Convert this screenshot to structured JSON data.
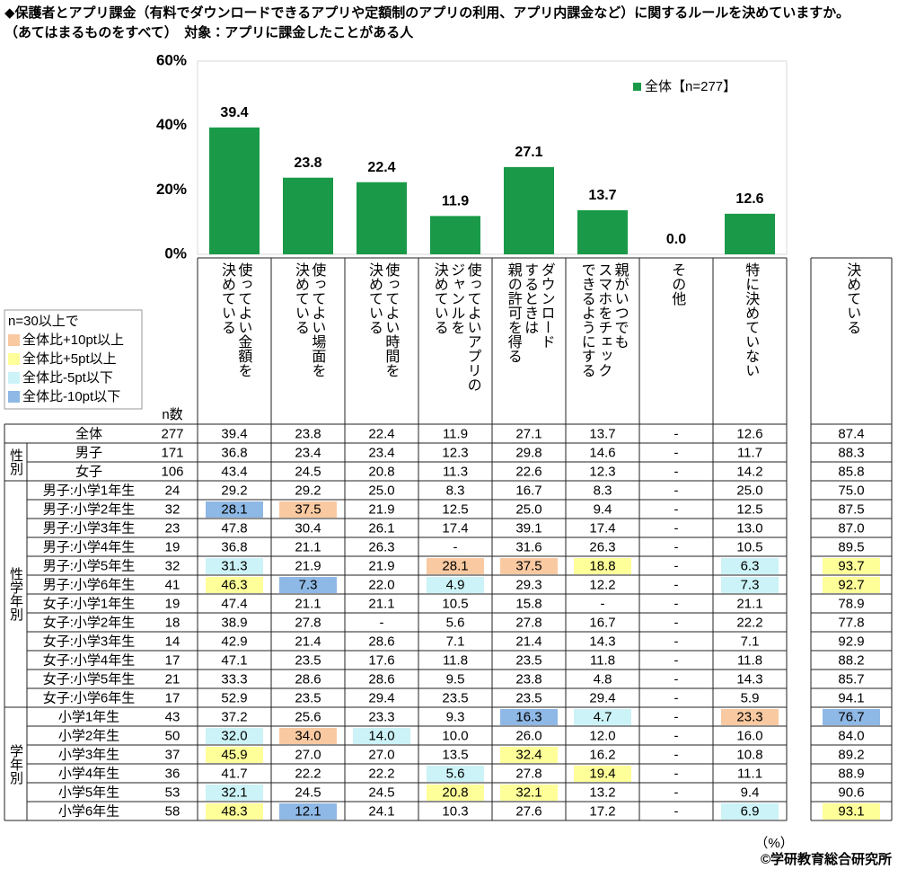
{
  "title": "◆保護者とアプリ課金（有料でダウンロードできるアプリや定額制のアプリの利用、アプリ内課金など）に関するルールを決めていますか。",
  "subtitle": "（あてはまるものをすべて）　対象：アプリに課金したことがある人",
  "chart_data": {
    "type": "bar",
    "categories": [
      "使ってよい金額を\n決めている",
      "使ってよい場面を\n決めている",
      "使ってよい時間を\n決めている",
      "使ってよいアプリの\nジャンルを\n決めている",
      "ダウンロード\nするときは\n親の許可を得る",
      "親がいつでも\nスマホをチェック\nできるようにする",
      "その他",
      "特に決めていない"
    ],
    "series": [
      {
        "name": "全体【n=277】",
        "color": "#1a9a48",
        "values": [
          39.4,
          23.8,
          22.4,
          11.9,
          27.1,
          13.7,
          0.0,
          12.6
        ],
        "value_labels": [
          "39.4",
          "23.8",
          "22.4",
          "11.9",
          "27.1",
          "13.7",
          "0.0",
          "12.6"
        ]
      }
    ],
    "ylim": [
      0,
      60
    ],
    "yticks": [
      {
        "value": 0,
        "label": "0%"
      },
      {
        "value": 20,
        "label": "20%"
      },
      {
        "value": 40,
        "label": "40%"
      },
      {
        "value": 60,
        "label": "60%"
      }
    ],
    "legend": "upper right"
  },
  "legend": {
    "title": "n=30以上で",
    "items": [
      {
        "label": "全体比+10pt以上",
        "color": "#f9c9a1"
      },
      {
        "label": "全体比+5pt以上",
        "color": "#ffff99"
      },
      {
        "label": "全体比-5pt以下",
        "color": "#ccf3f7"
      },
      {
        "label": "全体比-10pt以下",
        "color": "#8eb8e5"
      }
    ]
  },
  "table": {
    "n_header": "n数",
    "total_header": "決めている",
    "sections": [
      {
        "rows": [
          {
            "label": "全体",
            "n": "277",
            "cells": [
              "39.4",
              "23.8",
              "22.4",
              "11.9",
              "27.1",
              "13.7",
              "-",
              "12.6",
              "87.4"
            ]
          }
        ]
      },
      {
        "label": "性別",
        "rows": [
          {
            "label": "男子",
            "n": "171",
            "cells": [
              "36.8",
              "23.4",
              "23.4",
              "12.3",
              "29.8",
              "14.6",
              "-",
              "11.7",
              "88.3"
            ]
          },
          {
            "label": "女子",
            "n": "106",
            "cells": [
              "43.4",
              "24.5",
              "20.8",
              "11.3",
              "22.6",
              "12.3",
              "-",
              "14.2",
              "85.8"
            ]
          }
        ]
      },
      {
        "label": "性学年別",
        "rows": [
          {
            "label": "男子:小学1年生",
            "n": "24",
            "cells": [
              "29.2",
              "29.2",
              "25.0",
              "8.3",
              "16.7",
              "8.3",
              "-",
              "25.0",
              "75.0"
            ]
          },
          {
            "label": "男子:小学2年生",
            "n": "32",
            "cells": [
              "28.1",
              "37.5",
              "21.9",
              "12.5",
              "25.0",
              "9.4",
              "-",
              "12.5",
              "87.5"
            ],
            "fills": [
              "#8eb8e5",
              "#f9c9a1",
              null,
              null,
              null,
              null,
              null,
              null,
              null
            ]
          },
          {
            "label": "男子:小学3年生",
            "n": "23",
            "cells": [
              "47.8",
              "30.4",
              "26.1",
              "17.4",
              "39.1",
              "17.4",
              "-",
              "13.0",
              "87.0"
            ]
          },
          {
            "label": "男子:小学4年生",
            "n": "19",
            "cells": [
              "36.8",
              "21.1",
              "26.3",
              "-",
              "31.6",
              "26.3",
              "-",
              "10.5",
              "89.5"
            ]
          },
          {
            "label": "男子:小学5年生",
            "n": "32",
            "cells": [
              "31.3",
              "21.9",
              "21.9",
              "28.1",
              "37.5",
              "18.8",
              "-",
              "6.3",
              "93.7"
            ],
            "fills": [
              "#ccf3f7",
              null,
              null,
              "#f9c9a1",
              "#f9c9a1",
              "#ffff99",
              null,
              "#ccf3f7",
              "#ffff99"
            ]
          },
          {
            "label": "男子:小学6年生",
            "n": "41",
            "cells": [
              "46.3",
              "7.3",
              "22.0",
              "4.9",
              "29.3",
              "12.2",
              "-",
              "7.3",
              "92.7"
            ],
            "fills": [
              "#ffff99",
              "#8eb8e5",
              null,
              "#ccf3f7",
              null,
              null,
              null,
              "#ccf3f7",
              "#ffff99"
            ]
          },
          {
            "label": "女子:小学1年生",
            "n": "19",
            "cells": [
              "47.4",
              "21.1",
              "21.1",
              "10.5",
              "15.8",
              "-",
              "-",
              "21.1",
              "78.9"
            ]
          },
          {
            "label": "女子:小学2年生",
            "n": "18",
            "cells": [
              "38.9",
              "27.8",
              "-",
              "5.6",
              "27.8",
              "16.7",
              "-",
              "22.2",
              "77.8"
            ]
          },
          {
            "label": "女子:小学3年生",
            "n": "14",
            "cells": [
              "42.9",
              "21.4",
              "28.6",
              "7.1",
              "21.4",
              "14.3",
              "-",
              "7.1",
              "92.9"
            ]
          },
          {
            "label": "女子:小学4年生",
            "n": "17",
            "cells": [
              "47.1",
              "23.5",
              "17.6",
              "11.8",
              "23.5",
              "11.8",
              "-",
              "11.8",
              "88.2"
            ]
          },
          {
            "label": "女子:小学5年生",
            "n": "21",
            "cells": [
              "33.3",
              "28.6",
              "28.6",
              "9.5",
              "23.8",
              "4.8",
              "-",
              "14.3",
              "85.7"
            ]
          },
          {
            "label": "女子:小学6年生",
            "n": "17",
            "cells": [
              "52.9",
              "23.5",
              "29.4",
              "23.5",
              "23.5",
              "29.4",
              "-",
              "5.9",
              "94.1"
            ]
          }
        ]
      },
      {
        "label": "学年別",
        "rows": [
          {
            "label": "小学1年生",
            "n": "43",
            "cells": [
              "37.2",
              "25.6",
              "23.3",
              "9.3",
              "16.3",
              "4.7",
              "-",
              "23.3",
              "76.7"
            ],
            "fills": [
              null,
              null,
              null,
              null,
              "#8eb8e5",
              "#ccf3f7",
              null,
              "#f9c9a1",
              "#8eb8e5"
            ]
          },
          {
            "label": "小学2年生",
            "n": "50",
            "cells": [
              "32.0",
              "34.0",
              "14.0",
              "10.0",
              "26.0",
              "12.0",
              "-",
              "16.0",
              "84.0"
            ],
            "fills": [
              "#ccf3f7",
              "#f9c9a1",
              "#ccf3f7",
              null,
              null,
              null,
              null,
              null,
              null
            ]
          },
          {
            "label": "小学3年生",
            "n": "37",
            "cells": [
              "45.9",
              "27.0",
              "27.0",
              "13.5",
              "32.4",
              "16.2",
              "-",
              "10.8",
              "89.2"
            ],
            "fills": [
              "#ffff99",
              null,
              null,
              null,
              "#ffff99",
              null,
              null,
              null,
              null
            ]
          },
          {
            "label": "小学4年生",
            "n": "36",
            "cells": [
              "41.7",
              "22.2",
              "22.2",
              "5.6",
              "27.8",
              "19.4",
              "-",
              "11.1",
              "88.9"
            ],
            "fills": [
              null,
              null,
              null,
              "#ccf3f7",
              null,
              "#ffff99",
              null,
              null,
              null
            ]
          },
          {
            "label": "小学5年生",
            "n": "53",
            "cells": [
              "32.1",
              "24.5",
              "24.5",
              "20.8",
              "32.1",
              "13.2",
              "-",
              "9.4",
              "90.6"
            ],
            "fills": [
              "#ccf3f7",
              null,
              null,
              "#ffff99",
              "#ffff99",
              null,
              null,
              null,
              null
            ]
          },
          {
            "label": "小学6年生",
            "n": "58",
            "cells": [
              "48.3",
              "12.1",
              "24.1",
              "10.3",
              "27.6",
              "17.2",
              "-",
              "6.9",
              "93.1"
            ],
            "fills": [
              "#ffff99",
              "#8eb8e5",
              null,
              null,
              null,
              null,
              null,
              "#ccf3f7",
              "#ffff99"
            ]
          }
        ]
      }
    ]
  },
  "unit": "（%）",
  "copyright": "©学研教育総合研究所"
}
